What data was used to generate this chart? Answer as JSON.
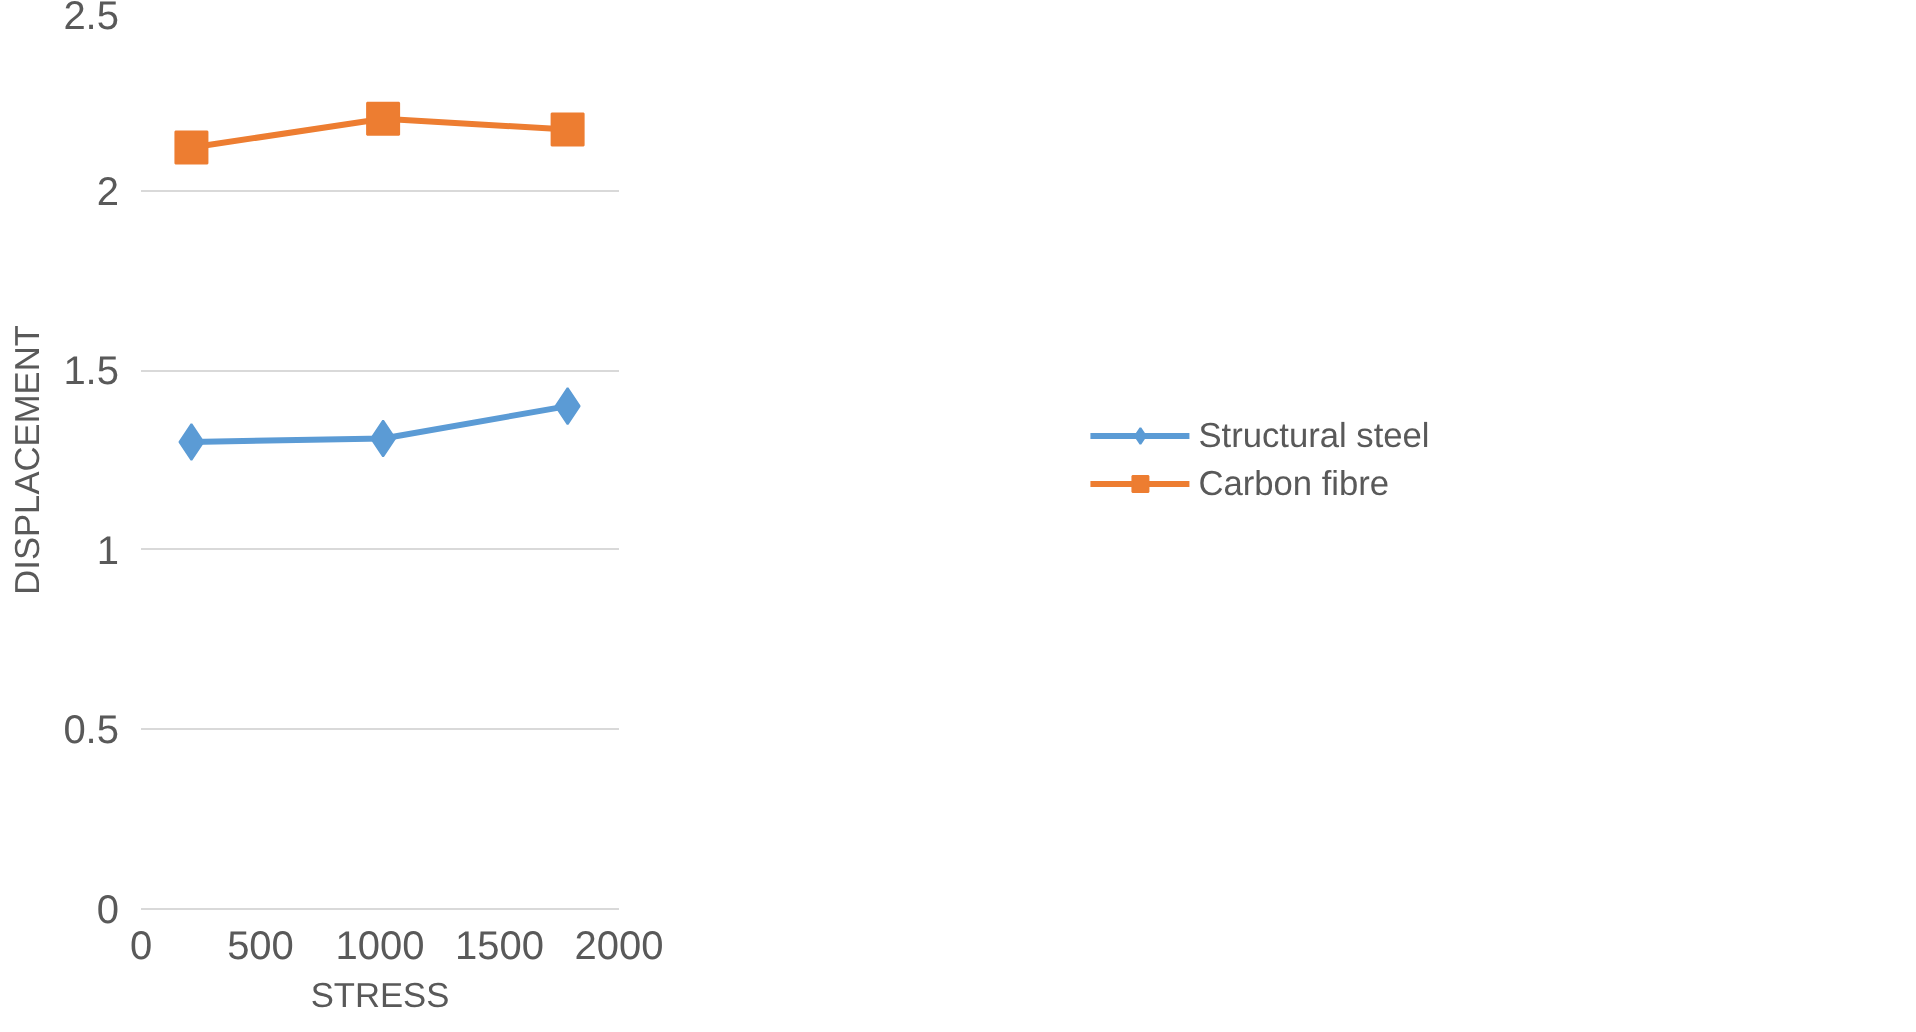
{
  "chart_data": {
    "type": "line",
    "xlabel": "STRESS",
    "ylabel": "DISPLACEMENT",
    "x": [
      211,
      1013,
      1785
    ],
    "series": [
      {
        "name": "Structural steel",
        "color": "#5b9bd5",
        "values": [
          1.3,
          1.31,
          1.4
        ],
        "marker": "diamond"
      },
      {
        "name": "Carbon fibre",
        "color": "#ed7d31",
        "values": [
          2.12,
          2.2,
          2.17
        ],
        "marker": "square"
      }
    ],
    "xlim": [
      0,
      2000
    ],
    "xticks": [
      0,
      500,
      1000,
      1500,
      2000
    ],
    "ylim": [
      0,
      2.5
    ],
    "yticks": [
      0,
      0.5,
      1,
      1.5,
      2,
      2.5
    ],
    "grid": "y",
    "legend": "right",
    "line_style": "solid"
  }
}
